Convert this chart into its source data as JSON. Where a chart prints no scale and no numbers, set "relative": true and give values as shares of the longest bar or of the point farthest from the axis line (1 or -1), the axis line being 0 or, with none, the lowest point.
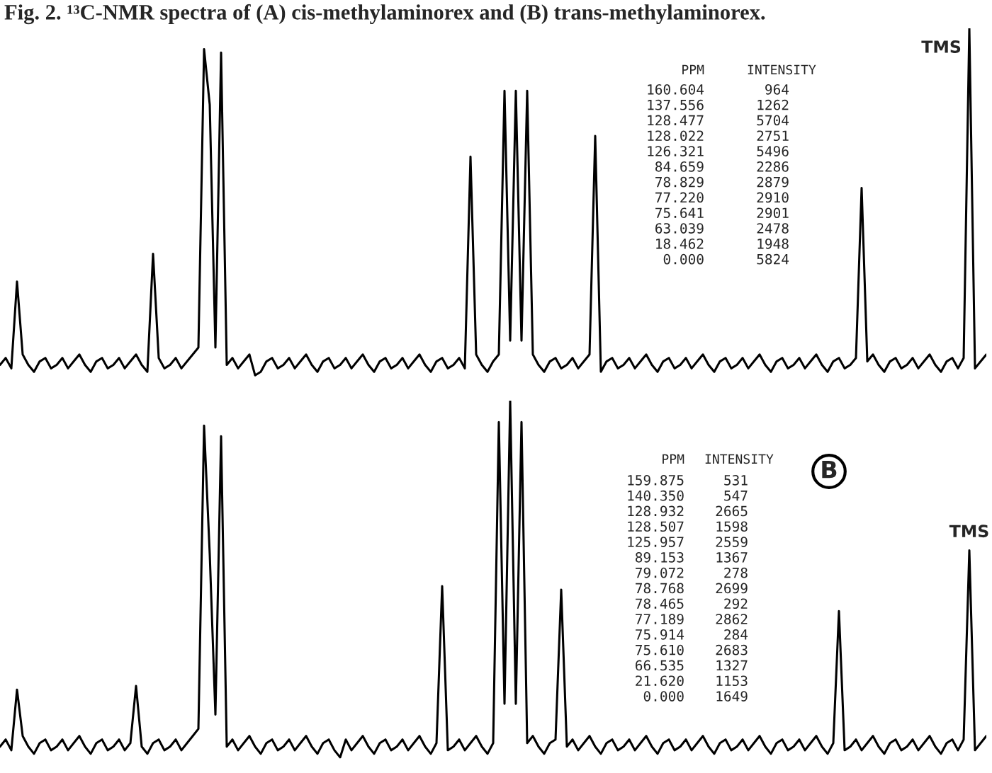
{
  "chart_data": [
    {
      "type": "line",
      "title": "Fig. 2. ¹³C-NMR spectra of (A) cis-methylaminorex and (B) trans-methylaminorex.",
      "relative": true,
      "categories": [
        null,
        null,
        null,
        null,
        null,
        null,
        null,
        null,
        null,
        null,
        null,
        null,
        null,
        null,
        null,
        null,
        null,
        null,
        null,
        null,
        null,
        null,
        null,
        null,
        null,
        null,
        null,
        null,
        null,
        null,
        null,
        null,
        null,
        null,
        null,
        null,
        null,
        null,
        null,
        null,
        null,
        null,
        null,
        null,
        null,
        null,
        null,
        null,
        null,
        null,
        null,
        null,
        null,
        null,
        null,
        null,
        null,
        null,
        null,
        null,
        null,
        null,
        null,
        null,
        null,
        null,
        null,
        null,
        null,
        null,
        null,
        null,
        null,
        null,
        null,
        null,
        null,
        null,
        null,
        null,
        null,
        null,
        null,
        null,
        null,
        null,
        null,
        null,
        null,
        null,
        null,
        null,
        null,
        null,
        null,
        null,
        null,
        null,
        null,
        null,
        null,
        null,
        null,
        null,
        null,
        null,
        null,
        null,
        null,
        null,
        null,
        null,
        null,
        null,
        null,
        null,
        null,
        null,
        null,
        null,
        null,
        null,
        null,
        null,
        null,
        null,
        null,
        null,
        null,
        null,
        null,
        null,
        null,
        null,
        null,
        null,
        null,
        null,
        null,
        null,
        null,
        null,
        null,
        null,
        null,
        null,
        null,
        null,
        null,
        null,
        null,
        null,
        null,
        null,
        null,
        null,
        null,
        null,
        null,
        null,
        null,
        null,
        null,
        null,
        null,
        null,
        null,
        null,
        null,
        null,
        null,
        null,
        null,
        null,
        null
      ],
      "series": [
        {
          "color": "#000000",
          "values": [
            0.03,
            0.05,
            0.02,
            0.27,
            0.06,
            0.03,
            0.01,
            0.04,
            0.05,
            0.02,
            0.03,
            0.05,
            0.02,
            0.04,
            0.06,
            0.03,
            0.01,
            0.04,
            0.05,
            0.02,
            0.03,
            0.05,
            0.02,
            0.04,
            0.06,
            0.03,
            0.01,
            0.35,
            0.05,
            0.02,
            0.03,
            0.05,
            0.02,
            0.04,
            0.06,
            0.08,
            0.94,
            0.78,
            0.08,
            0.93,
            0.03,
            0.05,
            0.02,
            0.04,
            0.06,
            0,
            0.01,
            0.04,
            0.05,
            0.02,
            0.03,
            0.05,
            0.02,
            0.04,
            0.06,
            0.03,
            0.01,
            0.04,
            0.05,
            0.02,
            0.03,
            0.05,
            0.02,
            0.04,
            0.06,
            0.03,
            0.01,
            0.04,
            0.05,
            0.02,
            0.03,
            0.05,
            0.02,
            0.04,
            0.06,
            0.03,
            0.01,
            0.04,
            0.05,
            0.02,
            0.03,
            0.05,
            0.02,
            0.63,
            0.06,
            0.03,
            0.01,
            0.04,
            0.06,
            0.82,
            0.1,
            0.82,
            0.1,
            0.82,
            0.06,
            0.03,
            0.01,
            0.04,
            0.05,
            0.02,
            0.03,
            0.05,
            0.02,
            0.04,
            0.06,
            0.69,
            0.01,
            0.04,
            0.05,
            0.02,
            0.03,
            0.05,
            0.02,
            0.04,
            0.06,
            0.03,
            0.01,
            0.04,
            0.05,
            0.02,
            0.03,
            0.05,
            0.02,
            0.04,
            0.06,
            0.03,
            0.01,
            0.04,
            0.05,
            0.02,
            0.03,
            0.05,
            0.02,
            0.04,
            0.06,
            0.03,
            0.01,
            0.04,
            0.05,
            0.02,
            0.03,
            0.05,
            0.02,
            0.04,
            0.06,
            0.03,
            0.01,
            0.04,
            0.05,
            0.02,
            0.03,
            0.05,
            0.54,
            0.04,
            0.06,
            0.03,
            0.01,
            0.04,
            0.05,
            0.02,
            0.03,
            0.05,
            0.02,
            0.04,
            0.06,
            0.03,
            0.01,
            0.04,
            0.05,
            0.02,
            0.05,
            1,
            0.02,
            0.04,
            0.06
          ]
        }
      ],
      "annotations": [
        "PPM INTENSITY",
        "160.604 964",
        "137.556 1262",
        "128.477 5704",
        "128.022 2751",
        "126.321 5496",
        "84.659 2286",
        "78.829 2879",
        "77.220 2910",
        "75.641 2901",
        "63.039 2478",
        "18.462 1948",
        "0.000 5824",
        "TMS"
      ]
    },
    {
      "type": "line",
      "title": "B",
      "relative": true,
      "categories": [
        null,
        null,
        null,
        null,
        null,
        null,
        null,
        null,
        null,
        null,
        null,
        null,
        null,
        null,
        null,
        null,
        null,
        null,
        null,
        null,
        null,
        null,
        null,
        null,
        null,
        null,
        null,
        null,
        null,
        null,
        null,
        null,
        null,
        null,
        null,
        null,
        null,
        null,
        null,
        null,
        null,
        null,
        null,
        null,
        null,
        null,
        null,
        null,
        null,
        null,
        null,
        null,
        null,
        null,
        null,
        null,
        null,
        null,
        null,
        null,
        null,
        null,
        null,
        null,
        null,
        null,
        null,
        null,
        null,
        null,
        null,
        null,
        null,
        null,
        null,
        null,
        null,
        null,
        null,
        null,
        null,
        null,
        null,
        null,
        null,
        null,
        null,
        null,
        null,
        null,
        null,
        null,
        null,
        null,
        null,
        null,
        null,
        null,
        null,
        null,
        null,
        null,
        null,
        null,
        null,
        null,
        null,
        null,
        null,
        null,
        null,
        null,
        null,
        null,
        null,
        null,
        null,
        null,
        null,
        null,
        null,
        null,
        null,
        null,
        null,
        null,
        null,
        null,
        null,
        null,
        null,
        null,
        null,
        null,
        null,
        null,
        null,
        null,
        null,
        null,
        null,
        null,
        null,
        null,
        null,
        null,
        null,
        null,
        null,
        null,
        null,
        null,
        null,
        null,
        null,
        null,
        null,
        null,
        null,
        null,
        null,
        null,
        null,
        null,
        null,
        null,
        null,
        null,
        null,
        null,
        null,
        null,
        null,
        null,
        null
      ],
      "series": [
        {
          "color": "#000000",
          "values": [
            0.03,
            0.05,
            0.02,
            0.19,
            0.06,
            0.03,
            0.01,
            0.04,
            0.05,
            0.02,
            0.03,
            0.05,
            0.02,
            0.04,
            0.06,
            0.03,
            0.01,
            0.04,
            0.05,
            0.02,
            0.03,
            0.05,
            0.02,
            0.04,
            0.2,
            0.03,
            0.01,
            0.04,
            0.05,
            0.02,
            0.03,
            0.05,
            0.02,
            0.04,
            0.06,
            0.08,
            0.93,
            0.57,
            0.12,
            0.9,
            0.03,
            0.05,
            0.02,
            0.04,
            0.06,
            0.03,
            0.01,
            0.04,
            0.05,
            0.02,
            0.03,
            0.05,
            0.02,
            0.04,
            0.06,
            0.03,
            0.01,
            0.04,
            0.05,
            0.02,
            0,
            0.05,
            0.02,
            0.04,
            0.06,
            0.03,
            0.01,
            0.04,
            0.05,
            0.02,
            0.03,
            0.05,
            0.02,
            0.04,
            0.06,
            0.03,
            0.01,
            0.04,
            0.48,
            0.02,
            0.03,
            0.05,
            0.02,
            0.04,
            0.06,
            0.03,
            0.01,
            0.04,
            0.94,
            0.15,
            1,
            0.15,
            0.94,
            0.04,
            0.06,
            0.03,
            0.01,
            0.04,
            0.05,
            0.47,
            0.03,
            0.05,
            0.02,
            0.04,
            0.06,
            0.03,
            0.01,
            0.04,
            0.05,
            0.02,
            0.03,
            0.05,
            0.02,
            0.04,
            0.06,
            0.03,
            0.01,
            0.04,
            0.05,
            0.02,
            0.03,
            0.05,
            0.02,
            0.04,
            0.06,
            0.03,
            0.01,
            0.04,
            0.05,
            0.02,
            0.03,
            0.05,
            0.02,
            0.04,
            0.06,
            0.03,
            0.01,
            0.04,
            0.05,
            0.02,
            0.03,
            0.05,
            0.02,
            0.04,
            0.06,
            0.03,
            0.01,
            0.04,
            0.41,
            0.02,
            0.03,
            0.05,
            0.02,
            0.04,
            0.06,
            0.03,
            0.01,
            0.04,
            0.05,
            0.02,
            0.03,
            0.05,
            0.02,
            0.04,
            0.06,
            0.03,
            0.01,
            0.04,
            0.05,
            0.02,
            0.05,
            0.58,
            0.02,
            0.04,
            0.06
          ]
        }
      ],
      "annotations": [
        "PPM INTENSITY",
        "159.875 531",
        "140.350 547",
        "128.932 2665",
        "128.507 1598",
        "125.957 2559",
        "89.153 1367",
        "79.072 278",
        "78.768 2699",
        "78.465 292",
        "77.189 2862",
        "75.914 284",
        "75.610 2683",
        "66.535 1327",
        "21.620 1153",
        "0.000 1649",
        "TMS"
      ]
    }
  ]
}
